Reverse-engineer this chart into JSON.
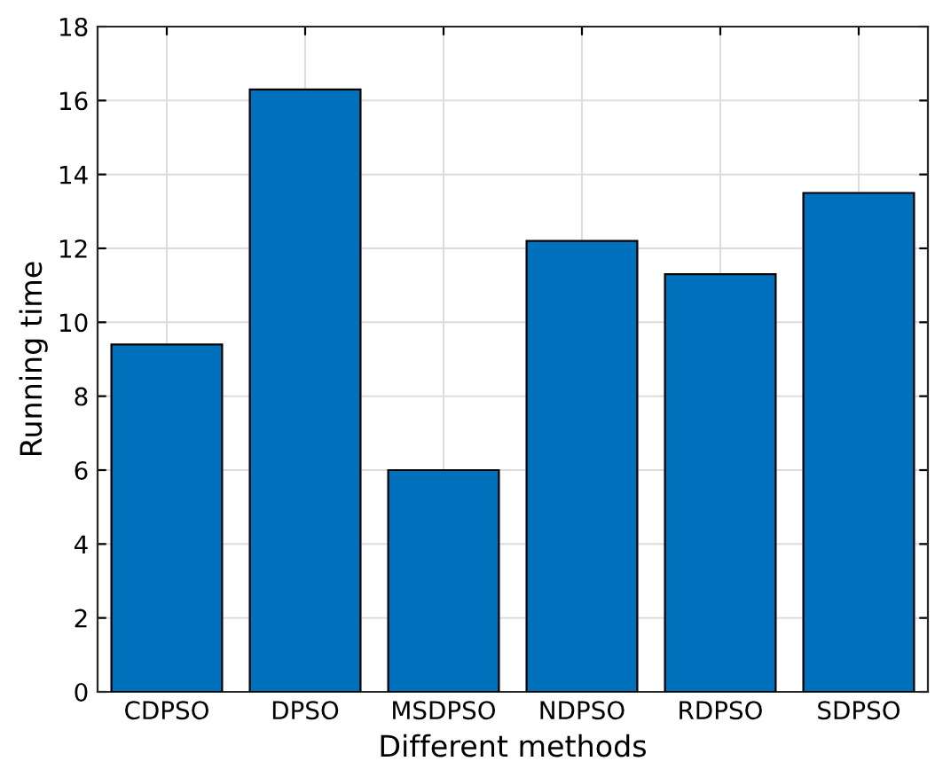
{
  "chart_data": {
    "type": "bar",
    "xlabel": "Different methods",
    "ylabel": "Running time",
    "categories": [
      "CDPSO",
      "DPSO",
      "MSDPSO",
      "NDPSO",
      "RDPSO",
      "SDPSO"
    ],
    "values": [
      9.4,
      16.3,
      6.0,
      12.2,
      11.3,
      13.5
    ],
    "color": "#0072bd",
    "ylim": [
      0,
      18
    ],
    "yticks": [
      0,
      2,
      4,
      6,
      8,
      10,
      12,
      14,
      16,
      18
    ],
    "grid": true
  }
}
